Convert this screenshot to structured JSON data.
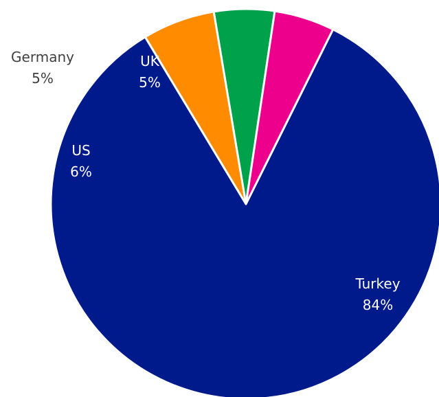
{
  "chart_data": {
    "type": "pie",
    "title": "",
    "start_angle_deg": -63.5,
    "direction": "clockwise",
    "slices": [
      {
        "name": "Turkey",
        "value": 84,
        "label": "84%",
        "color": "#001a8c",
        "label_placement": "inside"
      },
      {
        "name": "US",
        "value": 6,
        "label": "6%",
        "color": "#ff8c00",
        "label_placement": "inside"
      },
      {
        "name": "Germany",
        "value": 5,
        "label": "5%",
        "color": "#00a14b",
        "label_placement": "outside"
      },
      {
        "name": "UK",
        "value": 5,
        "label": "5%",
        "color": "#ec008c",
        "label_placement": "inside"
      }
    ]
  }
}
